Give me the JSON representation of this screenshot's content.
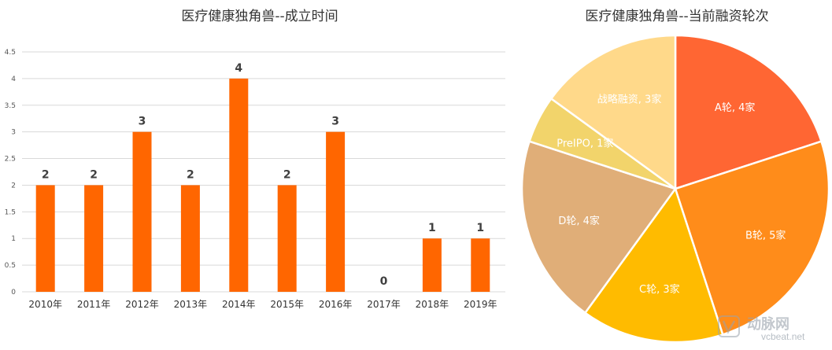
{
  "chart_data": [
    {
      "type": "bar",
      "title": "医疗健康独角兽--成立时间",
      "categories": [
        "2010年",
        "2011年",
        "2012年",
        "2013年",
        "2014年",
        "2015年",
        "2016年",
        "2017年",
        "2018年",
        "2019年"
      ],
      "values": [
        2,
        2,
        3,
        2,
        4,
        2,
        3,
        0,
        1,
        1
      ],
      "yticks": [
        "0",
        "0.5",
        "1",
        "1.5",
        "2",
        "2.5",
        "3",
        "3.5",
        "4",
        "4.5"
      ],
      "ylim": [
        0,
        4.5
      ],
      "grid": true,
      "colors": {
        "bar": "#ff6600",
        "grid": "#d9d9d9",
        "label": "#404040"
      }
    },
    {
      "type": "pie",
      "title": "医疗健康独角兽--当前融资轮次",
      "slices": [
        {
          "label": "A轮, 4家",
          "name": "A轮",
          "value": 4,
          "color": "#ff6633"
        },
        {
          "label": "B轮, 5家",
          "name": "B轮",
          "value": 5,
          "color": "#ff8c1a"
        },
        {
          "label": "C轮, 3家",
          "name": "C轮",
          "value": 3,
          "color": "#ffbb00"
        },
        {
          "label": "D轮, 4家",
          "name": "D轮",
          "value": 4,
          "color": "#e0ae78"
        },
        {
          "label": "PreIPO, 1家",
          "name": "PreIPO",
          "value": 1,
          "color": "#f2d46b"
        },
        {
          "label": "战略融资, 3家",
          "name": "战略融资",
          "value": 3,
          "color": "#ffd98a"
        }
      ]
    }
  ],
  "watermark": {
    "name": "动脉网",
    "url": "vcbeat.net"
  }
}
